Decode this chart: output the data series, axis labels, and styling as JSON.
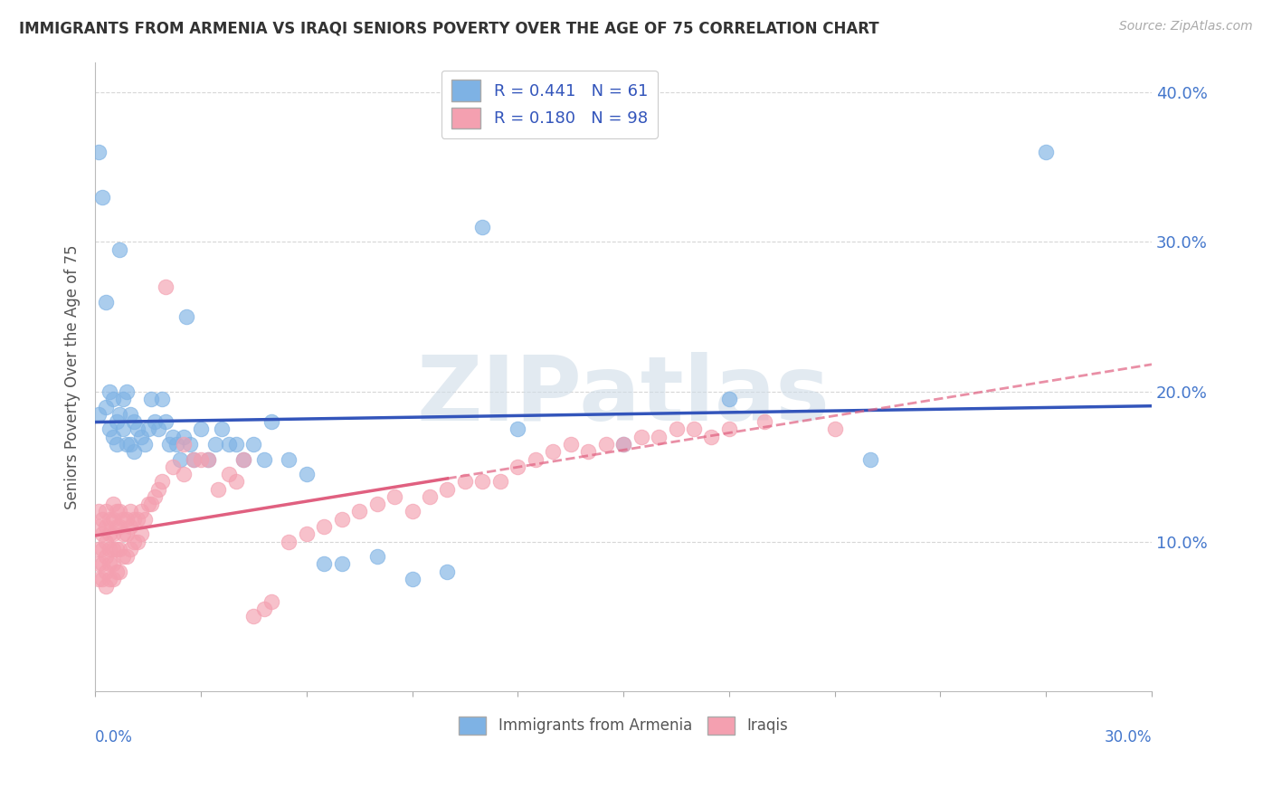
{
  "title": "IMMIGRANTS FROM ARMENIA VS IRAQI SENIORS POVERTY OVER THE AGE OF 75 CORRELATION CHART",
  "source": "Source: ZipAtlas.com",
  "ylabel": "Seniors Poverty Over the Age of 75",
  "xlim": [
    0.0,
    0.3
  ],
  "ylim": [
    0.0,
    0.42
  ],
  "yticks": [
    0.1,
    0.2,
    0.3,
    0.4
  ],
  "ytick_labels": [
    "10.0%",
    "20.0%",
    "30.0%",
    "40.0%"
  ],
  "legend_r_armenia": "R = 0.441",
  "legend_n_armenia": "N = 61",
  "legend_r_iraqis": "R = 0.180",
  "legend_n_iraqis": "N = 98",
  "color_armenia": "#7EB2E4",
  "color_iraqis": "#F4A0B0",
  "color_armenia_line": "#3355BB",
  "color_iraqis_line": "#E06080",
  "watermark": "ZIPatlas",
  "armenia_x": [
    0.001,
    0.001,
    0.002,
    0.003,
    0.003,
    0.004,
    0.004,
    0.005,
    0.005,
    0.006,
    0.006,
    0.007,
    0.007,
    0.008,
    0.008,
    0.009,
    0.009,
    0.01,
    0.01,
    0.011,
    0.011,
    0.012,
    0.013,
    0.014,
    0.015,
    0.016,
    0.017,
    0.018,
    0.019,
    0.02,
    0.021,
    0.022,
    0.023,
    0.024,
    0.025,
    0.026,
    0.027,
    0.028,
    0.03,
    0.032,
    0.034,
    0.036,
    0.038,
    0.04,
    0.042,
    0.045,
    0.048,
    0.05,
    0.055,
    0.06,
    0.065,
    0.07,
    0.08,
    0.09,
    0.1,
    0.11,
    0.12,
    0.15,
    0.18,
    0.22,
    0.27
  ],
  "armenia_y": [
    0.36,
    0.185,
    0.33,
    0.26,
    0.19,
    0.2,
    0.175,
    0.195,
    0.17,
    0.18,
    0.165,
    0.295,
    0.185,
    0.195,
    0.175,
    0.2,
    0.165,
    0.185,
    0.165,
    0.18,
    0.16,
    0.175,
    0.17,
    0.165,
    0.175,
    0.195,
    0.18,
    0.175,
    0.195,
    0.18,
    0.165,
    0.17,
    0.165,
    0.155,
    0.17,
    0.25,
    0.165,
    0.155,
    0.175,
    0.155,
    0.165,
    0.175,
    0.165,
    0.165,
    0.155,
    0.165,
    0.155,
    0.18,
    0.155,
    0.145,
    0.085,
    0.085,
    0.09,
    0.075,
    0.08,
    0.31,
    0.175,
    0.165,
    0.195,
    0.155,
    0.36
  ],
  "iraqis_x": [
    0.001,
    0.001,
    0.001,
    0.001,
    0.001,
    0.002,
    0.002,
    0.002,
    0.002,
    0.002,
    0.003,
    0.003,
    0.003,
    0.003,
    0.003,
    0.003,
    0.004,
    0.004,
    0.004,
    0.004,
    0.004,
    0.005,
    0.005,
    0.005,
    0.005,
    0.005,
    0.005,
    0.006,
    0.006,
    0.006,
    0.006,
    0.007,
    0.007,
    0.007,
    0.007,
    0.008,
    0.008,
    0.008,
    0.009,
    0.009,
    0.009,
    0.01,
    0.01,
    0.01,
    0.011,
    0.011,
    0.012,
    0.012,
    0.013,
    0.013,
    0.014,
    0.015,
    0.016,
    0.017,
    0.018,
    0.019,
    0.02,
    0.022,
    0.025,
    0.025,
    0.028,
    0.03,
    0.032,
    0.035,
    0.038,
    0.04,
    0.042,
    0.045,
    0.048,
    0.05,
    0.055,
    0.06,
    0.065,
    0.07,
    0.075,
    0.08,
    0.085,
    0.09,
    0.095,
    0.1,
    0.105,
    0.11,
    0.115,
    0.12,
    0.125,
    0.13,
    0.135,
    0.14,
    0.145,
    0.15,
    0.155,
    0.16,
    0.165,
    0.17,
    0.175,
    0.18,
    0.19,
    0.21
  ],
  "iraqis_y": [
    0.12,
    0.11,
    0.095,
    0.085,
    0.075,
    0.115,
    0.105,
    0.095,
    0.085,
    0.075,
    0.12,
    0.11,
    0.1,
    0.09,
    0.08,
    0.07,
    0.115,
    0.105,
    0.095,
    0.085,
    0.075,
    0.125,
    0.115,
    0.105,
    0.095,
    0.085,
    0.075,
    0.12,
    0.11,
    0.095,
    0.08,
    0.12,
    0.11,
    0.095,
    0.08,
    0.115,
    0.105,
    0.09,
    0.115,
    0.105,
    0.09,
    0.12,
    0.11,
    0.095,
    0.115,
    0.1,
    0.115,
    0.1,
    0.12,
    0.105,
    0.115,
    0.125,
    0.125,
    0.13,
    0.135,
    0.14,
    0.27,
    0.15,
    0.165,
    0.145,
    0.155,
    0.155,
    0.155,
    0.135,
    0.145,
    0.14,
    0.155,
    0.05,
    0.055,
    0.06,
    0.1,
    0.105,
    0.11,
    0.115,
    0.12,
    0.125,
    0.13,
    0.12,
    0.13,
    0.135,
    0.14,
    0.14,
    0.14,
    0.15,
    0.155,
    0.16,
    0.165,
    0.16,
    0.165,
    0.165,
    0.17,
    0.17,
    0.175,
    0.175,
    0.17,
    0.175,
    0.18,
    0.175
  ]
}
